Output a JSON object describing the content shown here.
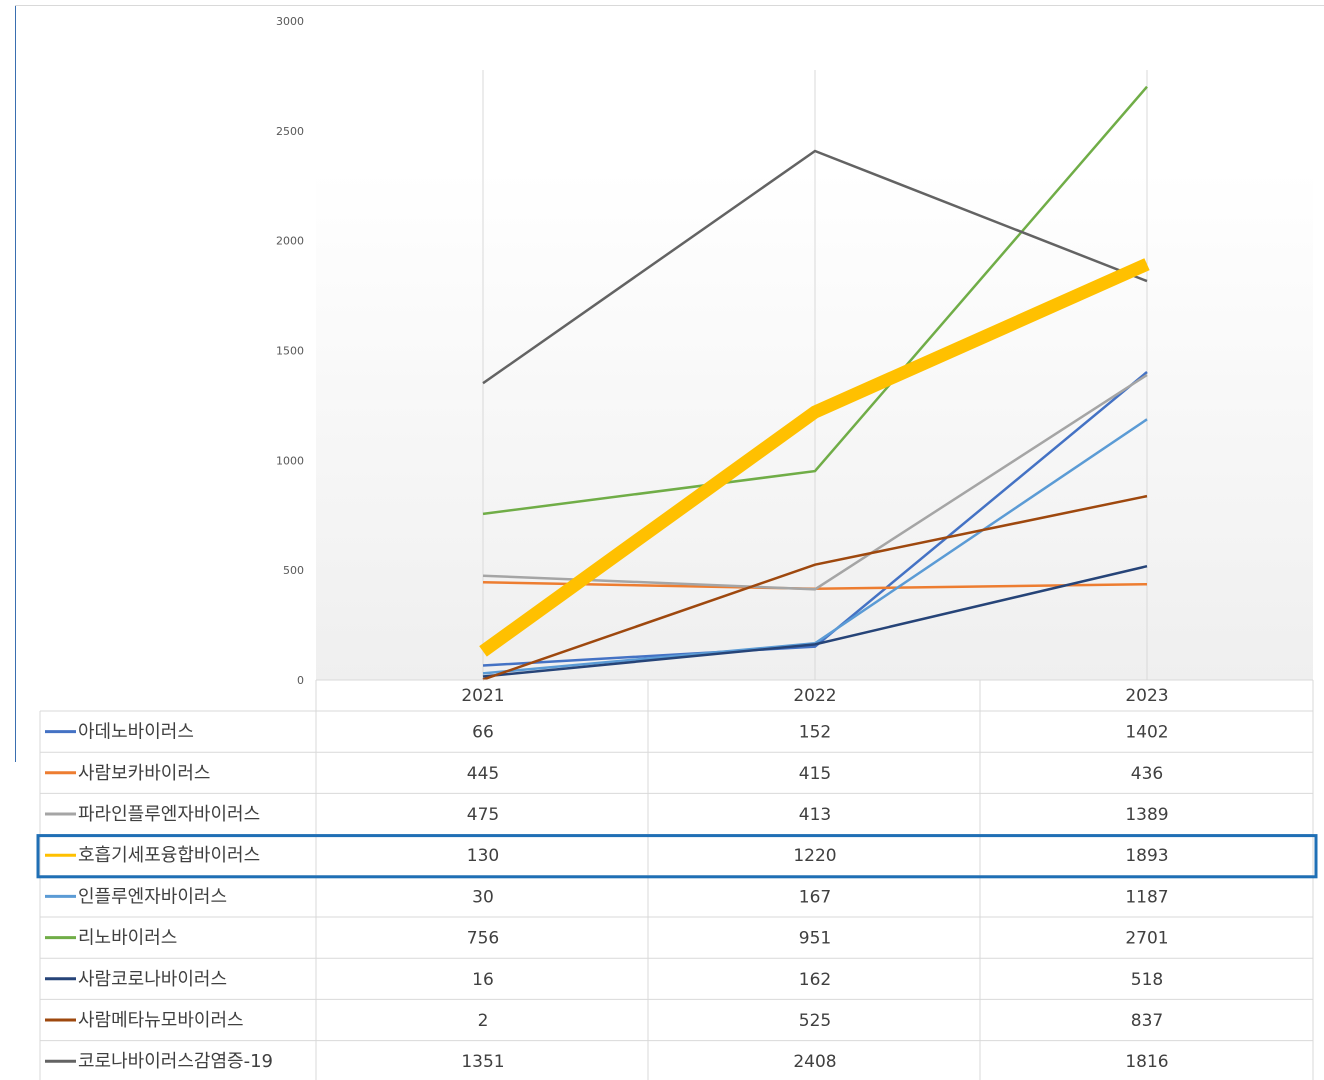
{
  "chart_data": {
    "type": "line",
    "categories": [
      "2021",
      "2022",
      "2023"
    ],
    "yticks": [
      "0",
      "500",
      "1000",
      "1500",
      "2000",
      "2500",
      "3000"
    ],
    "ylim": [
      0,
      3000
    ],
    "grid": "vertical",
    "legend": "data-table",
    "highlighted_series": "호흡기세포융합바이러스",
    "series": [
      {
        "name": "아데노바이러스",
        "values": [
          66,
          152,
          1402
        ],
        "color": "#4472c4",
        "labels": [
          "66",
          "152",
          "1402"
        ]
      },
      {
        "name": "사람보카바이러스",
        "values": [
          445,
          415,
          436
        ],
        "color": "#ed7d31",
        "labels": [
          "445",
          "415",
          "436"
        ]
      },
      {
        "name": "파라인플루엔자바이러스",
        "values": [
          475,
          413,
          1389
        ],
        "color": "#a5a5a5",
        "labels": [
          "475",
          "413",
          "1389"
        ]
      },
      {
        "name": "호흡기세포융합바이러스",
        "values": [
          130,
          1220,
          1893
        ],
        "color": "#ffc000",
        "labels": [
          "130",
          "1220",
          "1893"
        ]
      },
      {
        "name": "인플루엔자바이러스",
        "values": [
          30,
          167,
          1187
        ],
        "color": "#5b9bd5",
        "labels": [
          "30",
          "167",
          "1187"
        ]
      },
      {
        "name": "리노바이러스",
        "values": [
          756,
          951,
          2701
        ],
        "color": "#70ad47",
        "labels": [
          "756",
          "951",
          "2701"
        ]
      },
      {
        "name": "사람코로나바이러스",
        "values": [
          16,
          162,
          518
        ],
        "color": "#264478",
        "labels": [
          "16",
          "162",
          "518"
        ]
      },
      {
        "name": "사람메타뉴모바이러스",
        "values": [
          2,
          525,
          837
        ],
        "color": "#9e480e",
        "labels": [
          "2",
          "525",
          "837"
        ]
      },
      {
        "name": "코로나바이러스감염증-19",
        "values": [
          1351,
          2408,
          1816
        ],
        "color": "#636363",
        "labels": [
          "1351",
          "2408",
          "1816"
        ]
      }
    ]
  },
  "colors": {
    "highlight_box": "#1f6fb5",
    "grid": "#d9d9d9",
    "table_border": "#d9d9d9"
  }
}
